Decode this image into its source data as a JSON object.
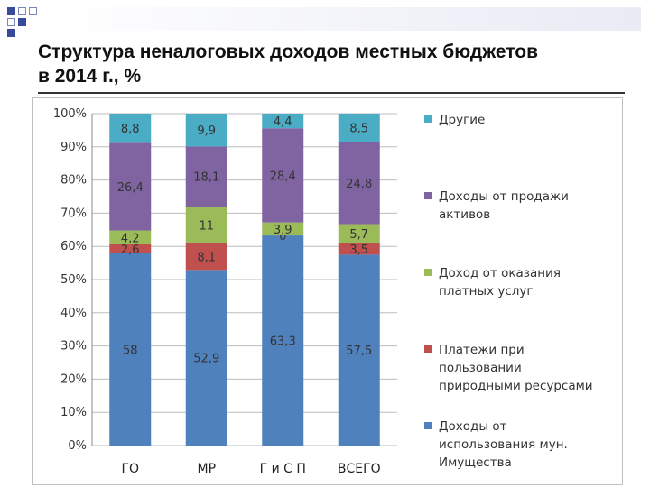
{
  "title_line1": "Структура неналоговых доходов местных бюджетов",
  "title_line2": "в 2014 г., %",
  "chart_data": {
    "type": "bar",
    "stacked": true,
    "percent": true,
    "categories": [
      "ГО",
      "МР",
      "Г и С П",
      "ВСЕГО"
    ],
    "ylim": [
      0,
      100
    ],
    "yticks": [
      "0%",
      "10%",
      "20%",
      "30%",
      "40%",
      "50%",
      "60%",
      "70%",
      "80%",
      "90%",
      "100%"
    ],
    "grid": true,
    "legend_position": "right",
    "series": [
      {
        "name": "Доходы от использования мун. Имущества",
        "lines": [
          "Доходы от",
          "использования мун.",
          "Имущества"
        ],
        "color": "#4f81bd",
        "values": [
          58,
          52.9,
          63.3,
          57.5
        ],
        "labels": [
          "58",
          "52,9",
          "63,3",
          "57,5"
        ]
      },
      {
        "name": "Платежи при пользовании природными ресурсами",
        "lines": [
          "Платежи при",
          "пользовании",
          "природными ресурсами"
        ],
        "color": "#c0504d",
        "values": [
          2.6,
          8.1,
          0,
          3.5
        ],
        "labels": [
          "2,6",
          "8,1",
          "0",
          "3,5"
        ]
      },
      {
        "name": "Доход от оказания платных услуг",
        "lines": [
          "Доход от оказания",
          "платных услуг"
        ],
        "color": "#9bbb59",
        "values": [
          4.2,
          11,
          3.9,
          5.7
        ],
        "labels": [
          "4,2",
          "11",
          "3,9",
          "5,7"
        ]
      },
      {
        "name": "Доходы от продажи активов",
        "lines": [
          "Доходы от продажи",
          "активов"
        ],
        "color": "#8064a2",
        "values": [
          26.4,
          18.1,
          28.4,
          24.8
        ],
        "labels": [
          "26,4",
          "18,1",
          "28,4",
          "24,8"
        ]
      },
      {
        "name": "Другие",
        "lines": [
          "Другие"
        ],
        "color": "#4bacc6",
        "values": [
          8.8,
          9.9,
          4.4,
          8.5
        ],
        "labels": [
          "8,8",
          "9,9",
          "4,4",
          "8,5"
        ]
      }
    ]
  }
}
